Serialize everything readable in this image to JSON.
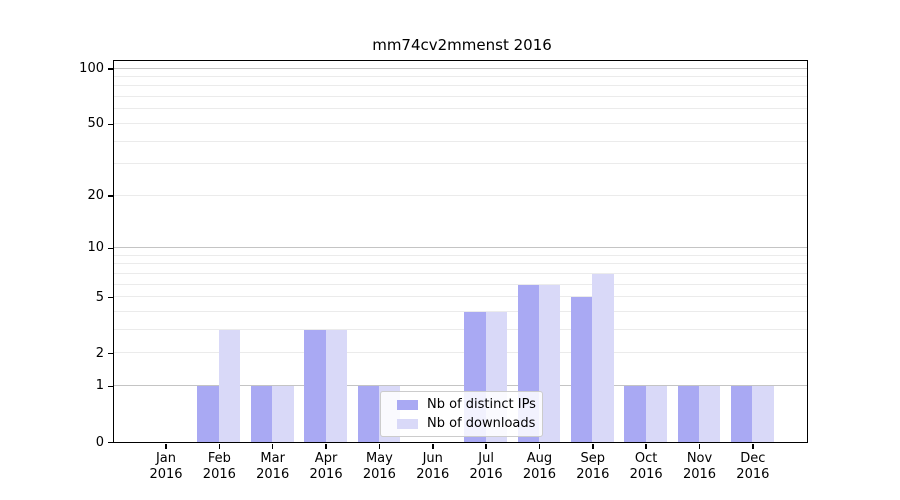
{
  "chart_data": {
    "type": "bar",
    "title": "mm74cv2mmenst 2016",
    "categories": [
      "Jan",
      "Feb",
      "Mar",
      "Apr",
      "May",
      "Jun",
      "Jul",
      "Aug",
      "Sep",
      "Oct",
      "Nov",
      "Dec"
    ],
    "tick_year": "2016",
    "series": [
      {
        "name": "Nb of distinct IPs",
        "color": "#a9a9f3",
        "values": [
          0,
          1,
          1,
          3,
          1,
          0,
          4,
          6,
          5,
          1,
          1,
          1
        ]
      },
      {
        "name": "Nb of downloads",
        "color": "#d9d9f8",
        "values": [
          0,
          3,
          1,
          3,
          1,
          0,
          4,
          6,
          7,
          1,
          1,
          1
        ]
      }
    ],
    "yscale": "log1p",
    "yticks_labeled": [
      0,
      1,
      2,
      5,
      10,
      20,
      50,
      100
    ],
    "yticks_major_grid": [
      1,
      10,
      100
    ],
    "yticks_minor_grid": [
      2,
      3,
      4,
      5,
      6,
      7,
      8,
      9,
      20,
      30,
      40,
      50,
      60,
      70,
      80,
      90
    ],
    "ylim": [
      0,
      110
    ],
    "grid": true,
    "legend_position": "lower center inside"
  },
  "colors": {
    "bar_distinct_ips": "#a9a9f3",
    "bar_downloads": "#d9d9f8",
    "grid_major": "#c4c4c4",
    "grid_minor": "#ebebeb",
    "axis": "#000000",
    "background": "#ffffff"
  }
}
